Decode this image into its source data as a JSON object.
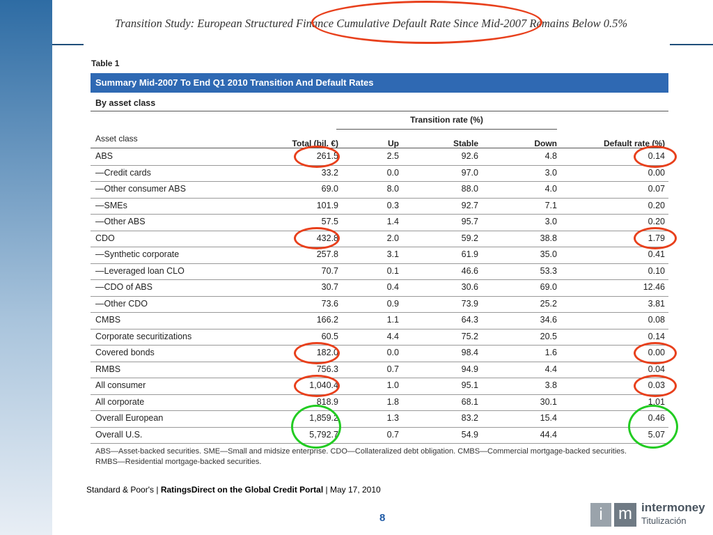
{
  "header": {
    "title": "Transition Study: European Structured Finance Cumulative Default Rate Since Mid-2007 Remains Below 0.5%"
  },
  "table": {
    "label": "Table 1",
    "title": "Summary Mid-2007 To End Q1 2010 Transition And Default Rates",
    "subtitle": "By asset class",
    "group_header": "Transition rate (%)",
    "columns": [
      "Asset class",
      "Total (bil. €)",
      "Up",
      "Stable",
      "Down",
      "Default rate (%)"
    ],
    "rows": [
      [
        "ABS",
        "261.5",
        "2.5",
        "92.6",
        "4.8",
        "0.14"
      ],
      [
        "—Credit cards",
        "33.2",
        "0.0",
        "97.0",
        "3.0",
        "0.00"
      ],
      [
        "—Other consumer ABS",
        "69.0",
        "8.0",
        "88.0",
        "4.0",
        "0.07"
      ],
      [
        "—SMEs",
        "101.9",
        "0.3",
        "92.7",
        "7.1",
        "0.20"
      ],
      [
        "—Other ABS",
        "57.5",
        "1.4",
        "95.7",
        "3.0",
        "0.20"
      ],
      [
        "CDO",
        "432.8",
        "2.0",
        "59.2",
        "38.8",
        "1.79"
      ],
      [
        "—Synthetic corporate",
        "257.8",
        "3.1",
        "61.9",
        "35.0",
        "0.41"
      ],
      [
        "—Leveraged loan CLO",
        "70.7",
        "0.1",
        "46.6",
        "53.3",
        "0.10"
      ],
      [
        "—CDO of ABS",
        "30.7",
        "0.4",
        "30.6",
        "69.0",
        "12.46"
      ],
      [
        "—Other CDO",
        "73.6",
        "0.9",
        "73.9",
        "25.2",
        "3.81"
      ],
      [
        "CMBS",
        "166.2",
        "1.1",
        "64.3",
        "34.6",
        "0.08"
      ],
      [
        "Corporate securitizations",
        "60.5",
        "4.4",
        "75.2",
        "20.5",
        "0.14"
      ],
      [
        "Covered bonds",
        "182.0",
        "0.0",
        "98.4",
        "1.6",
        "0.00"
      ],
      [
        "RMBS",
        "756.3",
        "0.7",
        "94.9",
        "4.4",
        "0.04"
      ],
      [
        "All consumer",
        "1,040.4",
        "1.0",
        "95.1",
        "3.8",
        "0.03"
      ],
      [
        "All corporate",
        "818.9",
        "1.8",
        "68.1",
        "30.1",
        "1.01"
      ],
      [
        "Overall European",
        "1,859.2",
        "1.3",
        "83.2",
        "15.4",
        "0.46"
      ],
      [
        "Overall U.S.",
        "5,792.7",
        "0.7",
        "54.9",
        "44.4",
        "5.07"
      ]
    ],
    "note": [
      "ABS—Asset-backed securities. SME—Small and midsize enterprise. CDO—Collateralized debt obligation. CMBS—Commercial mortgage-backed securities.",
      "RMBS—Residential mortgage-backed securities."
    ]
  },
  "footer": {
    "source": [
      "Standard & Poor's |",
      "RatingsDirect on the Global Credit Portal",
      "| May 17, 2010"
    ],
    "page": "8"
  },
  "logo": {
    "letters": [
      "i",
      "m"
    ],
    "name": "intermoney",
    "sub": "Titulización"
  }
}
